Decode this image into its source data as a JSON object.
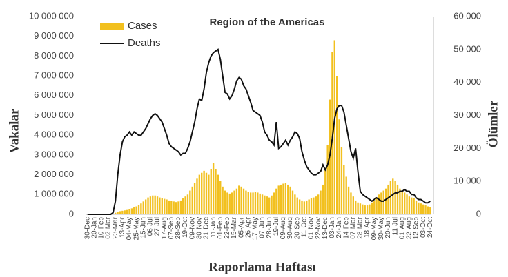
{
  "chart_data": {
    "type": "bar",
    "title": "Region of the Americas",
    "x_label": "Raporlama Haftası",
    "y_label": "Vakalar",
    "y2_label": "Ölümler",
    "categories": [
      "30-Dec",
      null,
      null,
      "20-Jan",
      null,
      null,
      "10-Feb",
      null,
      null,
      "02-Mar",
      null,
      null,
      "23-Mar",
      null,
      null,
      "13-Apr",
      null,
      null,
      "04-May",
      null,
      null,
      "25-May",
      null,
      null,
      "15-Jun",
      null,
      null,
      "06-Jul",
      null,
      null,
      "27-Jul",
      null,
      null,
      "17-Aug",
      null,
      null,
      "07-Sep",
      null,
      null,
      "28-Sep",
      null,
      null,
      "19-Oct",
      null,
      null,
      "09-Nov",
      null,
      null,
      "30-Nov",
      null,
      null,
      "21-Dec",
      null,
      null,
      "11-Jan",
      null,
      null,
      "01-Feb",
      null,
      null,
      "22-Feb",
      null,
      null,
      "15-Mar",
      null,
      null,
      "05-Apr",
      null,
      null,
      "26-Apr",
      null,
      null,
      "17-May",
      null,
      null,
      "07-Jun",
      null,
      null,
      "28-Jun",
      null,
      null,
      "19-Jul",
      null,
      null,
      "09-Aug",
      null,
      null,
      "30-Aug",
      null,
      null,
      "20-Sep",
      null,
      null,
      "11-Oct",
      null,
      null,
      "01-Nov",
      null,
      null,
      "22-Nov",
      null,
      null,
      "13-Dec",
      null,
      null,
      "03-Jan",
      null,
      null,
      "24-Jan",
      null,
      null,
      "14-Feb",
      null,
      null,
      "07-Mar",
      null,
      null,
      "28-Mar",
      null,
      null,
      "18-Apr",
      null,
      null,
      "09-May",
      null,
      null,
      "30-May",
      null,
      null,
      "20-Jun",
      null,
      null,
      "11-Jul",
      null,
      null,
      "01-Aug",
      null,
      null,
      "22-Aug",
      null,
      null,
      "12-Sep",
      null,
      null,
      "03-Oct",
      null,
      null,
      "24-Oct"
    ],
    "series": [
      {
        "name": "Cases",
        "type": "bar",
        "color": "#f2c01e",
        "values": [
          0,
          0,
          0,
          0,
          0,
          0,
          0,
          0,
          0,
          0,
          5000,
          30000,
          80000,
          130000,
          160000,
          180000,
          200000,
          220000,
          250000,
          300000,
          350000,
          400000,
          480000,
          550000,
          650000,
          750000,
          850000,
          900000,
          950000,
          950000,
          900000,
          850000,
          800000,
          780000,
          750000,
          700000,
          680000,
          650000,
          620000,
          650000,
          700000,
          800000,
          900000,
          1000000,
          1200000,
          1400000,
          1600000,
          1800000,
          2000000,
          2100000,
          2200000,
          2100000,
          2000000,
          2300000,
          2600000,
          2300000,
          2000000,
          1700000,
          1400000,
          1200000,
          1100000,
          1050000,
          1100000,
          1200000,
          1300000,
          1450000,
          1400000,
          1300000,
          1200000,
          1150000,
          1100000,
          1100000,
          1150000,
          1100000,
          1050000,
          1000000,
          950000,
          900000,
          850000,
          950000,
          1100000,
          1300000,
          1450000,
          1500000,
          1550000,
          1600000,
          1500000,
          1400000,
          1200000,
          1000000,
          850000,
          750000,
          700000,
          650000,
          700000,
          750000,
          800000,
          850000,
          900000,
          1000000,
          1200000,
          1500000,
          2300000,
          3500000,
          5800000,
          8200000,
          8800000,
          7000000,
          4800000,
          3400000,
          2500000,
          1900000,
          1400000,
          1100000,
          900000,
          700000,
          600000,
          550000,
          500000,
          450000,
          450000,
          500000,
          600000,
          700000,
          850000,
          1000000,
          1100000,
          1200000,
          1300000,
          1500000,
          1700000,
          1800000,
          1700000,
          1500000,
          1300000,
          1200000,
          1100000,
          1000000,
          900000,
          850000,
          800000,
          700000,
          600000,
          550000,
          500000,
          450000,
          400000,
          380000
        ]
      },
      {
        "name": "Deaths",
        "type": "line",
        "axis": "y2",
        "color": "#111111",
        "values": [
          0,
          0,
          0,
          0,
          0,
          0,
          0,
          0,
          0,
          0,
          0,
          500,
          4000,
          12000,
          18000,
          22000,
          23500,
          24000,
          25000,
          24000,
          25000,
          24500,
          24000,
          24000,
          25000,
          26000,
          27500,
          29000,
          30000,
          30500,
          30000,
          29000,
          28000,
          26000,
          24000,
          21500,
          20500,
          20000,
          19500,
          19000,
          18000,
          18500,
          18500,
          20000,
          22000,
          25000,
          28000,
          32000,
          35000,
          34500,
          38000,
          43000,
          46000,
          48000,
          49000,
          49500,
          50000,
          47000,
          42000,
          37000,
          36500,
          35000,
          36000,
          38000,
          40500,
          41500,
          41000,
          39000,
          38000,
          36000,
          34000,
          31500,
          31000,
          30500,
          30000,
          28000,
          25000,
          24000,
          22500,
          22000,
          21000,
          28000,
          20000,
          20500,
          21500,
          22500,
          21000,
          22500,
          23500,
          25000,
          24500,
          23000,
          19000,
          16500,
          14500,
          13500,
          12500,
          12000,
          12000,
          12500,
          13000,
          15000,
          13500,
          15000,
          18000,
          23000,
          29000,
          32000,
          33000,
          33000,
          31000,
          27000,
          23000,
          19000,
          17000,
          20000,
          13000,
          7000,
          6000,
          5500,
          5000,
          4500,
          4000,
          4500,
          5000,
          4500,
          4000,
          4000,
          4500,
          5000,
          5500,
          6000,
          6500,
          6500,
          7000,
          7000,
          7500,
          7000,
          7000,
          6000,
          6000,
          5000,
          4500,
          4500,
          4000,
          3500,
          3500,
          4000
        ]
      }
    ],
    "ylim": [
      0,
      10000000
    ],
    "yticks": [
      0,
      {
        "value": 1000000,
        "label": "1 000 000"
      },
      {
        "value": 2000000,
        "label": "2 000 000"
      },
      {
        "value": 3000000,
        "label": "3 000 000"
      },
      {
        "value": 4000000,
        "label": "4 000 000"
      },
      {
        "value": 5000000,
        "label": "5 000 000"
      },
      {
        "value": 6000000,
        "label": "6 000 000"
      },
      {
        "value": 7000000,
        "label": "7 000 000"
      },
      {
        "value": 8000000,
        "label": "8 000 000"
      },
      {
        "value": 9000000,
        "label": "9 000 000"
      },
      {
        "value": 10000000,
        "label": "10 000 000"
      }
    ],
    "y2lim": [
      0,
      60000
    ],
    "y2ticks": [
      0,
      {
        "value": 10000,
        "label": "10 000"
      },
      {
        "value": 20000,
        "label": "20 000"
      },
      {
        "value": 30000,
        "label": "30 000"
      },
      {
        "value": 40000,
        "label": "40 000"
      },
      {
        "value": 50000,
        "label": "50 000"
      },
      {
        "value": 60000,
        "label": "60 000"
      }
    ],
    "grid": false,
    "legend": "top-left"
  }
}
